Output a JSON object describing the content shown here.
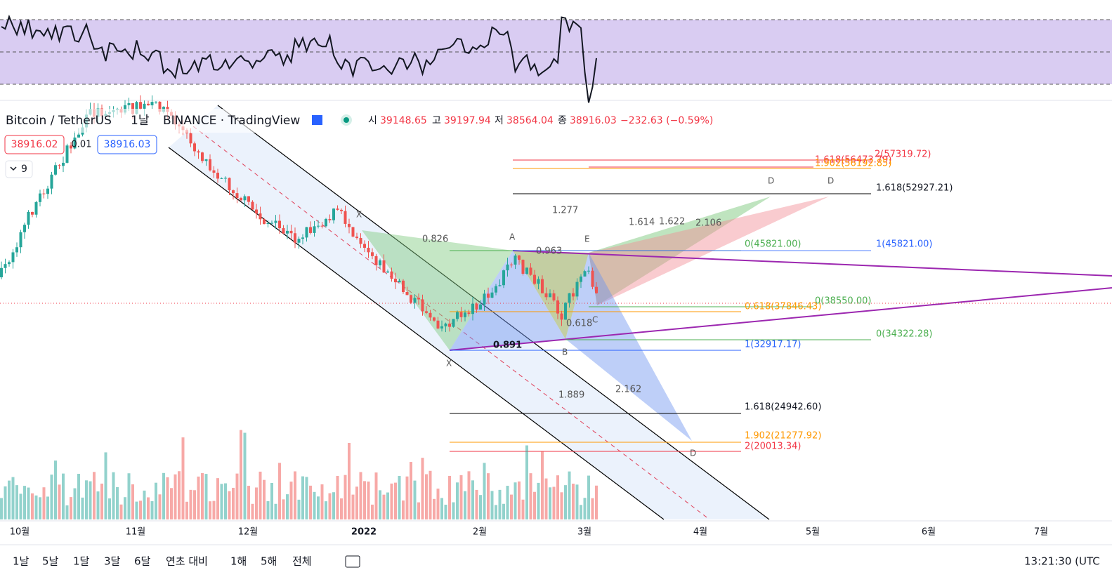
{
  "header": {
    "symbol": "Bitcoin / TetherUS",
    "interval": "1날",
    "exchange": "BINANCE · TradingView",
    "indicator_count": "9"
  },
  "ohlc": {
    "open_label": "시",
    "open": "39148.65",
    "high_label": "고",
    "high": "39197.94",
    "low_label": "저",
    "low": "38564.04",
    "close_label": "종",
    "close": "38916.03",
    "change": "−232.63 (−0.59%)"
  },
  "price_boxes": {
    "sell": "38916.02",
    "spread": "0.01",
    "buy": "38916.03"
  },
  "fib_levels": [
    "2(57319.72)",
    "1.618(56473.79)",
    "1.902(56192.85)",
    "1.618(52927.21)",
    "0(45821.00)",
    "1(45821.00)",
    "0.618(37846.43)",
    "0(38550.00)",
    "0(34322.28)",
    "1(32917.17)",
    "1.618(24942.60)",
    "1.902(21277.92)",
    "2(20013.34)"
  ],
  "ratios": [
    "0.826",
    "1.277",
    "1.614",
    "1.622",
    "2.106",
    "0.963",
    "0.618",
    "0.891",
    "1.889",
    "2.162"
  ],
  "points": [
    "X",
    "A",
    "B",
    "C",
    "D",
    "E"
  ],
  "time_axis": [
    "10월",
    "11월",
    "12월",
    "2022",
    "2월",
    "3월",
    "4월",
    "5월",
    "6월",
    "7월"
  ],
  "range_buttons": [
    "1날",
    "5날",
    "1달",
    "3달",
    "6달",
    "연초 대비",
    "1해",
    "5해",
    "전체"
  ],
  "clock": "13:21:30 (UTC"
}
